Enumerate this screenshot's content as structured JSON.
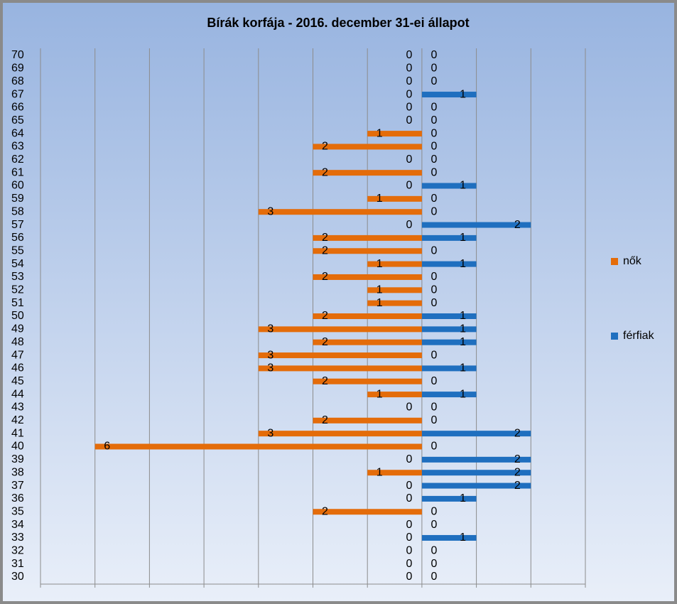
{
  "chart_data": {
    "type": "bar",
    "orientation": "horizontal",
    "title": "Bírák korfája - 2016. december 31-ei állapot",
    "categories": [
      "30",
      "31",
      "32",
      "33",
      "34",
      "35",
      "36",
      "37",
      "38",
      "39",
      "40",
      "41",
      "42",
      "43",
      "44",
      "45",
      "46",
      "47",
      "48",
      "49",
      "50",
      "51",
      "52",
      "53",
      "54",
      "55",
      "56",
      "57",
      "58",
      "59",
      "60",
      "61",
      "62",
      "63",
      "64",
      "65",
      "66",
      "67",
      "68",
      "69",
      "70"
    ],
    "series": [
      {
        "name": "nők",
        "color": "#e46c0a",
        "values": [
          0,
          0,
          0,
          0,
          0,
          -2,
          0,
          0,
          -1,
          0,
          -6,
          -3,
          -2,
          0,
          -1,
          -2,
          -3,
          -3,
          -2,
          -3,
          -2,
          -1,
          -1,
          -2,
          -1,
          -2,
          -2,
          0,
          -3,
          -1,
          0,
          -2,
          0,
          -2,
          -1,
          0,
          0,
          0,
          0,
          0,
          0
        ],
        "value_labels": [
          "0",
          "0",
          "0",
          "0",
          "0",
          "2",
          "0",
          "0",
          "1",
          "0",
          "6",
          "3",
          "2",
          "0",
          "1",
          "2",
          "3",
          "3",
          "2",
          "3",
          "2",
          "1",
          "1",
          "2",
          "1",
          "2",
          "2",
          "0",
          "3",
          "1",
          "0",
          "2",
          "0",
          "2",
          "1",
          "0",
          "0",
          "0",
          "0",
          "0",
          "0"
        ]
      },
      {
        "name": "férfiak",
        "color": "#1f6fbf",
        "values": [
          0,
          0,
          0,
          1,
          0,
          0,
          1,
          2,
          2,
          2,
          0,
          2,
          0,
          0,
          1,
          0,
          1,
          0,
          1,
          1,
          1,
          0,
          0,
          0,
          1,
          0,
          1,
          2,
          0,
          0,
          1,
          0,
          0,
          0,
          0,
          0,
          0,
          1,
          0,
          0,
          0
        ]
      }
    ],
    "xlim": [
      -7,
      3
    ],
    "xticks": [
      -7,
      -6,
      -5,
      -4,
      -3,
      -2,
      -1,
      0,
      1,
      2,
      3
    ],
    "grid": true
  }
}
